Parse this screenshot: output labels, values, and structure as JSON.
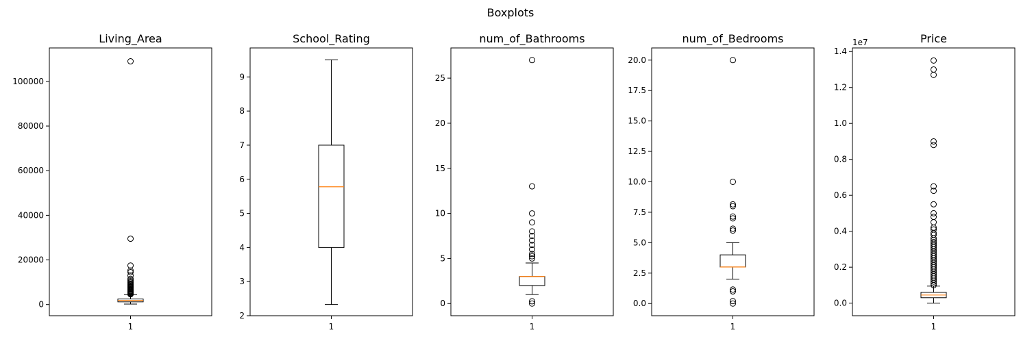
{
  "figure": {
    "suptitle": "Boxplots"
  },
  "chart_data": [
    {
      "type": "box",
      "title": "Living_Area",
      "categories": [
        "1"
      ],
      "offset_label": "",
      "ylim": [
        -5000,
        115000
      ],
      "yticks": [
        0,
        20000,
        40000,
        60000,
        80000,
        100000
      ],
      "ytick_labels": [
        "0",
        "20000",
        "40000",
        "60000",
        "80000",
        "100000"
      ],
      "box": {
        "whisker_low": 200,
        "q1": 1200,
        "median": 1850,
        "q3": 2500,
        "whisker_high": 4400
      },
      "outliers": [
        109000,
        29500,
        17500,
        15200,
        14500,
        13000,
        11500,
        10800,
        10200,
        9800,
        9300,
        8900,
        8500,
        8100,
        7800,
        7400,
        7000,
        6700,
        6300,
        6000,
        5700,
        5400,
        5100,
        4800,
        4600
      ]
    },
    {
      "type": "box",
      "title": "School_Rating",
      "categories": [
        "1"
      ],
      "offset_label": "",
      "ylim": [
        2.0,
        9.85
      ],
      "yticks": [
        2,
        3,
        4,
        5,
        6,
        7,
        8,
        9
      ],
      "ytick_labels": [
        "2",
        "3",
        "4",
        "5",
        "6",
        "7",
        "8",
        "9"
      ],
      "box": {
        "whisker_low": 2.33,
        "q1": 4.0,
        "median": 5.78,
        "q3": 7.0,
        "whisker_high": 9.5
      },
      "outliers": []
    },
    {
      "type": "box",
      "title": "num_of_Bathrooms",
      "categories": [
        "1"
      ],
      "offset_label": "",
      "ylim": [
        -1.35,
        28.35
      ],
      "yticks": [
        0,
        5,
        10,
        15,
        20,
        25
      ],
      "ytick_labels": [
        "0",
        "5",
        "10",
        "15",
        "20",
        "25"
      ],
      "box": {
        "whisker_low": 1.0,
        "q1": 2.0,
        "median": 3.0,
        "q3": 3.0,
        "whisker_high": 4.5
      },
      "outliers": [
        0,
        0.25,
        5,
        5.25,
        5.5,
        6,
        6.5,
        7,
        7.5,
        8,
        9,
        10,
        13,
        27
      ]
    },
    {
      "type": "box",
      "title": "num_of_Bedrooms",
      "categories": [
        "1"
      ],
      "offset_label": "",
      "ylim": [
        -1.0,
        21.0
      ],
      "yticks": [
        0.0,
        2.5,
        5.0,
        7.5,
        10.0,
        12.5,
        15.0,
        17.5,
        20.0
      ],
      "ytick_labels": [
        "0.0",
        "2.5",
        "5.0",
        "7.5",
        "10.0",
        "12.5",
        "15.0",
        "17.5",
        "20.0"
      ],
      "box": {
        "whisker_low": 2.0,
        "q1": 3.0,
        "median": 3.0,
        "q3": 4.0,
        "whisker_high": 5.0
      },
      "outliers": [
        0,
        0.2,
        1,
        1.15,
        6,
        6.15,
        7,
        7.15,
        8,
        8.15,
        10,
        20
      ]
    },
    {
      "type": "box",
      "title": "Price",
      "categories": [
        "1"
      ],
      "offset_label": "1e7",
      "ylim": [
        -700000,
        14200000
      ],
      "yticks": [
        0,
        2000000,
        4000000,
        6000000,
        8000000,
        10000000,
        12000000,
        14000000
      ],
      "ytick_labels": [
        "0.0",
        "0.2",
        "0.4",
        "0.6",
        "0.8",
        "1.0",
        "1.2",
        "1.4"
      ],
      "box": {
        "whisker_low": 0,
        "q1": 300000,
        "median": 450000,
        "q3": 600000,
        "whisker_high": 950000
      },
      "outliers": [
        13500000,
        13000000,
        12700000,
        9000000,
        8800000,
        6500000,
        6250000,
        5500000,
        5000000,
        4800000,
        4500000,
        4200000,
        4100000,
        3900000,
        3800000,
        3600000,
        3500000,
        3400000,
        3300000,
        3200000,
        3100000,
        3000000,
        2900000,
        2800000,
        2700000,
        2600000,
        2500000,
        2400000,
        2300000,
        2200000,
        2100000,
        2000000,
        1900000,
        1800000,
        1700000,
        1600000,
        1500000,
        1400000,
        1300000,
        1200000,
        1100000,
        1000000
      ]
    }
  ]
}
